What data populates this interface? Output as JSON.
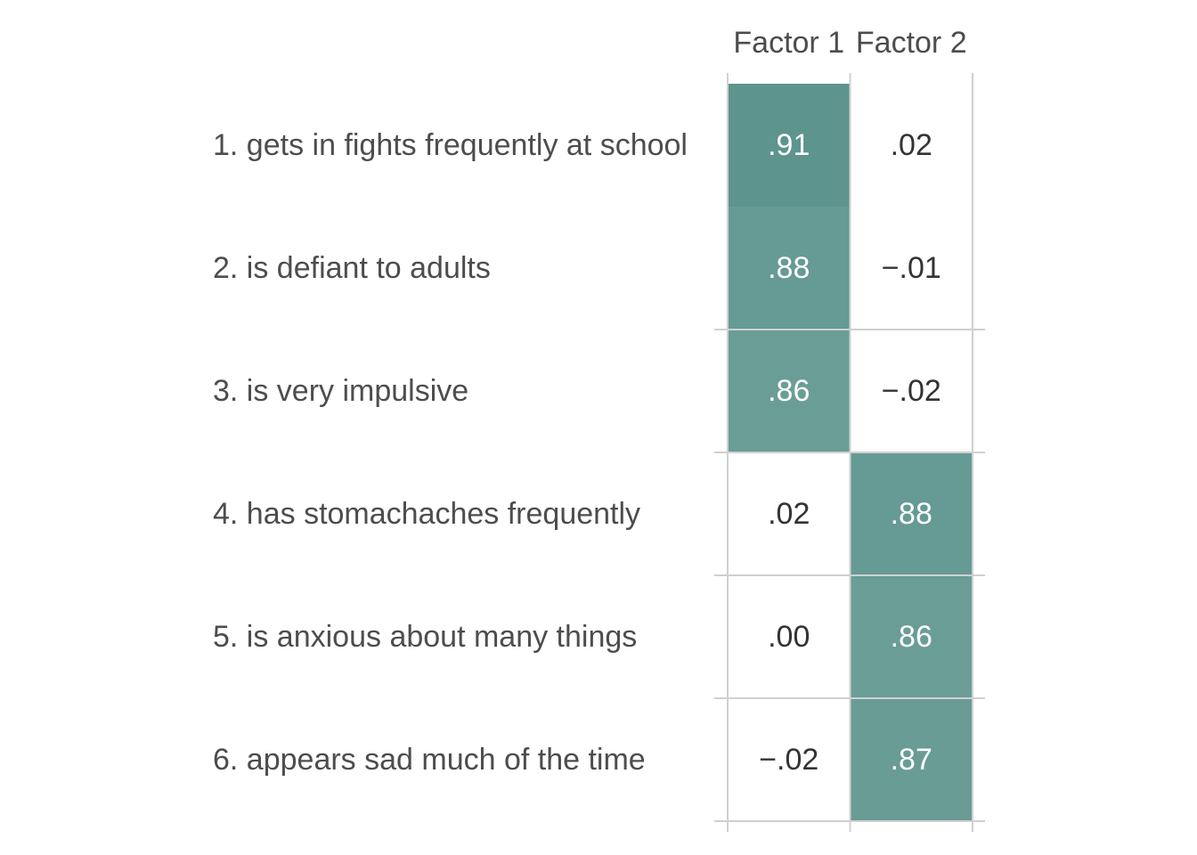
{
  "chart_data": {
    "type": "heatmap",
    "title": "",
    "xlabel": "",
    "ylabel": "",
    "columns": [
      "Factor 1",
      "Factor 2"
    ],
    "rows": [
      "1. gets in fights frequently at school",
      "2. is defiant to adults",
      "3. is very impulsive",
      "4. has stomachaches frequently",
      "5. is anxious about many things",
      "6. appears sad much of the time"
    ],
    "values": [
      [
        0.91,
        0.02
      ],
      [
        0.88,
        -0.01
      ],
      [
        0.86,
        -0.02
      ],
      [
        0.02,
        0.88
      ],
      [
        0.0,
        0.86
      ],
      [
        -0.02,
        0.87
      ]
    ],
    "value_labels": [
      [
        ".91",
        ".02"
      ],
      [
        ".88",
        "−.01"
      ],
      [
        ".86",
        "−.02"
      ],
      [
        ".02",
        ".88"
      ],
      [
        ".00",
        ".86"
      ],
      [
        "−.02",
        ".87"
      ]
    ],
    "color_scale": {
      "low": "#ffffff",
      "high": "#1f6b62"
    },
    "high_text_color": "#ffffff",
    "low_text_color": "#333333",
    "grid": true,
    "legend": "none"
  }
}
